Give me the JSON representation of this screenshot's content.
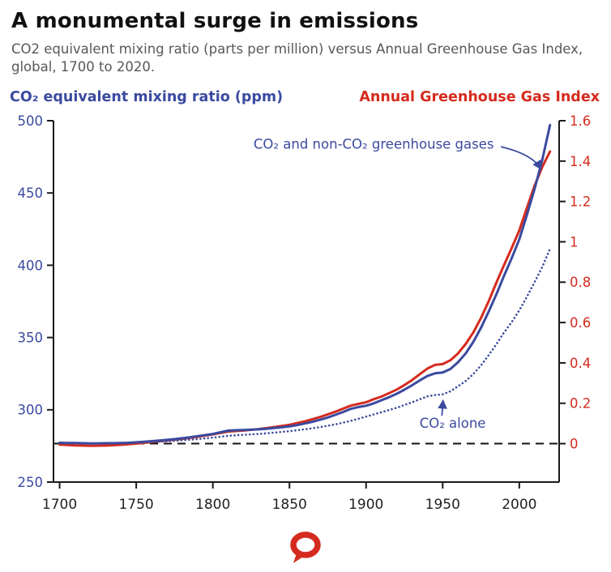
{
  "header": {
    "title": "A monumental surge in emissions",
    "subtitle": "CO2 equivalent mixing ratio (parts per million) versus Annual Greenhouse Gas Index, global, 1700 to 2020."
  },
  "colors": {
    "blue": "#3b4a9f",
    "red": "#d52b1e",
    "title_text": "#111111",
    "subtitle_text": "#57585a",
    "axis_line": "#1a1a1a",
    "x_tick_label": "#222222",
    "background": "#ffffff"
  },
  "logo": {
    "name": "The Conversation logo",
    "color": "#d52b1e"
  },
  "chart_data": {
    "type": "line",
    "title": "A monumental surge in emissions",
    "grid": false,
    "legend_position": "none",
    "xlabel": "",
    "x_axis": {
      "xlim": [
        1696,
        2026
      ],
      "ticks": [
        1700,
        1750,
        1800,
        1850,
        1900,
        1950,
        2000
      ]
    },
    "left_axis": {
      "label": "CO₂ equivalent mixing ratio (ppm)",
      "color": "#3b4a9f",
      "ylim": [
        250,
        500
      ],
      "ticks": [
        250,
        300,
        350,
        400,
        450,
        500
      ]
    },
    "right_axis": {
      "label": "Annual Greenhouse Gas Index",
      "color": "#d52b1e",
      "ylim": [
        -0.1905,
        1.6
      ],
      "ticks": [
        0,
        0.2,
        0.4,
        0.6,
        0.8,
        1,
        1.2,
        1.4,
        1.6
      ]
    },
    "baseline": {
      "axis": "left",
      "value": 276.6,
      "style": "dashed",
      "color": "#111111"
    },
    "series": [
      {
        "name": "Annual Greenhouse Gas Index",
        "axis": "right",
        "style": "solid",
        "color": "#d52b1e",
        "points": [
          [
            1700,
            -0.005
          ],
          [
            1710,
            -0.009
          ],
          [
            1720,
            -0.011
          ],
          [
            1730,
            -0.01
          ],
          [
            1740,
            -0.006
          ],
          [
            1750,
            0
          ],
          [
            1760,
            0.008
          ],
          [
            1770,
            0.015
          ],
          [
            1780,
            0.024
          ],
          [
            1790,
            0.034
          ],
          [
            1800,
            0.046
          ],
          [
            1810,
            0.06
          ],
          [
            1820,
            0.065
          ],
          [
            1830,
            0.072
          ],
          [
            1840,
            0.082
          ],
          [
            1850,
            0.093
          ],
          [
            1860,
            0.11
          ],
          [
            1870,
            0.132
          ],
          [
            1880,
            0.158
          ],
          [
            1890,
            0.188
          ],
          [
            1895,
            0.197
          ],
          [
            1900,
            0.205
          ],
          [
            1905,
            0.22
          ],
          [
            1910,
            0.233
          ],
          [
            1915,
            0.25
          ],
          [
            1920,
            0.268
          ],
          [
            1925,
            0.29
          ],
          [
            1930,
            0.315
          ],
          [
            1935,
            0.344
          ],
          [
            1940,
            0.372
          ],
          [
            1945,
            0.39
          ],
          [
            1950,
            0.394
          ],
          [
            1955,
            0.413
          ],
          [
            1960,
            0.447
          ],
          [
            1965,
            0.494
          ],
          [
            1970,
            0.551
          ],
          [
            1975,
            0.623
          ],
          [
            1980,
            0.705
          ],
          [
            1985,
            0.797
          ],
          [
            1990,
            0.884
          ],
          [
            1995,
            0.969
          ],
          [
            2000,
            1.056
          ],
          [
            2005,
            1.169
          ],
          [
            2010,
            1.278
          ],
          [
            2015,
            1.371
          ],
          [
            2020,
            1.447
          ]
        ]
      },
      {
        "name": "CO₂ and non-CO₂ greenhouse gases",
        "axis": "left",
        "style": "solid",
        "color": "#3b4a9f",
        "points": [
          [
            1700,
            277.2
          ],
          [
            1705,
            277.1
          ],
          [
            1710,
            277
          ],
          [
            1715,
            276.9
          ],
          [
            1720,
            276.8
          ],
          [
            1725,
            276.8
          ],
          [
            1730,
            276.9
          ],
          [
            1735,
            276.9
          ],
          [
            1740,
            277
          ],
          [
            1745,
            277.2
          ],
          [
            1750,
            277.5
          ],
          [
            1755,
            277.9
          ],
          [
            1760,
            278.3
          ],
          [
            1765,
            278.7
          ],
          [
            1770,
            279.2
          ],
          [
            1775,
            279.7
          ],
          [
            1780,
            280.3
          ],
          [
            1785,
            281
          ],
          [
            1790,
            281.8
          ],
          [
            1795,
            282.5
          ],
          [
            1800,
            283.3
          ],
          [
            1805,
            284.5
          ],
          [
            1810,
            285.6
          ],
          [
            1815,
            285.9
          ],
          [
            1820,
            286
          ],
          [
            1825,
            286.2
          ],
          [
            1830,
            286.5
          ],
          [
            1835,
            286.9
          ],
          [
            1840,
            287.4
          ],
          [
            1845,
            287.9
          ],
          [
            1850,
            288.5
          ],
          [
            1855,
            289.4
          ],
          [
            1860,
            290.5
          ],
          [
            1865,
            291.7
          ],
          [
            1870,
            293.1
          ],
          [
            1875,
            294.7
          ],
          [
            1880,
            296.5
          ],
          [
            1885,
            298.5
          ],
          [
            1890,
            300.6
          ],
          [
            1895,
            301.9
          ],
          [
            1900,
            302.8
          ],
          [
            1905,
            304.5
          ],
          [
            1910,
            306.6
          ],
          [
            1915,
            308.7
          ],
          [
            1920,
            311.1
          ],
          [
            1925,
            313.9
          ],
          [
            1930,
            317
          ],
          [
            1935,
            320.3
          ],
          [
            1940,
            323.4
          ],
          [
            1945,
            325.2
          ],
          [
            1950,
            325.8
          ],
          [
            1955,
            328.2
          ],
          [
            1960,
            332.9
          ],
          [
            1965,
            339
          ],
          [
            1970,
            347
          ],
          [
            1975,
            356.8
          ],
          [
            1980,
            367.9
          ],
          [
            1985,
            379.8
          ],
          [
            1990,
            392.6
          ],
          [
            1995,
            404.8
          ],
          [
            2000,
            417.9
          ],
          [
            2005,
            435
          ],
          [
            2010,
            452.8
          ],
          [
            2015,
            472.9
          ],
          [
            2020,
            497
          ]
        ]
      },
      {
        "name": "CO₂ alone",
        "axis": "left",
        "style": "dotted",
        "color": "#3b4a9f",
        "points": [
          [
            1700,
            276.9
          ],
          [
            1710,
            276.8
          ],
          [
            1720,
            276.7
          ],
          [
            1730,
            276.8
          ],
          [
            1740,
            276.9
          ],
          [
            1750,
            277.2
          ],
          [
            1760,
            277.7
          ],
          [
            1770,
            278.2
          ],
          [
            1780,
            278.9
          ],
          [
            1790,
            279.7
          ],
          [
            1800,
            280.8
          ],
          [
            1810,
            282
          ],
          [
            1820,
            282.7
          ],
          [
            1830,
            283.3
          ],
          [
            1840,
            284.2
          ],
          [
            1850,
            285.2
          ],
          [
            1860,
            286.5
          ],
          [
            1870,
            288
          ],
          [
            1880,
            289.9
          ],
          [
            1890,
            292.3
          ],
          [
            1900,
            295.3
          ],
          [
            1910,
            298.3
          ],
          [
            1920,
            301.4
          ],
          [
            1930,
            305.2
          ],
          [
            1940,
            309.3
          ],
          [
            1945,
            310.2
          ],
          [
            1950,
            310.7
          ],
          [
            1955,
            312.8
          ],
          [
            1960,
            316.3
          ],
          [
            1965,
            319.9
          ],
          [
            1970,
            324.8
          ],
          [
            1975,
            330.7
          ],
          [
            1980,
            337.8
          ],
          [
            1985,
            345.3
          ],
          [
            1990,
            353.4
          ],
          [
            1995,
            360.6
          ],
          [
            2000,
            368.8
          ],
          [
            2005,
            378.3
          ],
          [
            2010,
            388.3
          ],
          [
            2015,
            398.9
          ],
          [
            2020,
            411.3
          ]
        ]
      }
    ],
    "annotations": [
      {
        "text": "CO₂ and non-CO₂ greenhouse gases",
        "color": "#3b4a9f",
        "axis": "left",
        "text_at": [
          1905,
          484
        ],
        "arrow": {
          "from": [
            1988,
            482
          ],
          "ctrl": [
            2008,
            477
          ],
          "to": [
            2014,
            467
          ]
        }
      },
      {
        "text": "CO₂ alone",
        "color": "#3b4a9f",
        "axis": "left",
        "text_at": [
          1956.5,
          291
        ],
        "arrow": {
          "from": [
            1949.5,
            296
          ],
          "ctrl": [
            1949.9,
            301
          ],
          "to": [
            1950.2,
            306
          ]
        }
      }
    ]
  }
}
